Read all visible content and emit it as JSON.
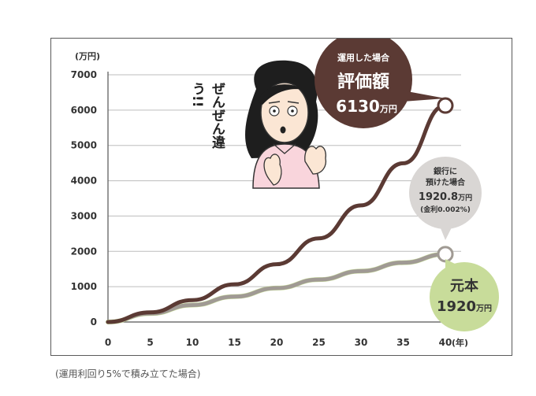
{
  "chart_data": {
    "type": "line",
    "yunit": "(万円)",
    "xunit": "(年)",
    "x_ticks": [
      0,
      5,
      10,
      15,
      20,
      25,
      30,
      35,
      40
    ],
    "y_ticks": [
      0,
      1000,
      2000,
      3000,
      4000,
      5000,
      6000,
      7000
    ],
    "xlim": [
      0,
      40
    ],
    "ylim": [
      0,
      7000
    ],
    "grid": true,
    "x": [
      0,
      5,
      10,
      15,
      20,
      25,
      30,
      35,
      40
    ],
    "series": [
      {
        "key": "invest",
        "color": "#5b3a34",
        "values": [
          0,
          272,
          620,
          1066,
          1637,
          2368,
          3302,
          4495,
          6130
        ]
      },
      {
        "key": "bank",
        "color": "#a09a94",
        "values": [
          0,
          240,
          480,
          720,
          960,
          1200,
          1440,
          1680,
          1920.8
        ]
      },
      {
        "key": "principal",
        "color": "#c8dc9a",
        "values": [
          0,
          240,
          480,
          720,
          960,
          1200,
          1440,
          1680,
          1920
        ]
      }
    ],
    "annotations": {
      "invest": {
        "line1": "運用した場合",
        "line2": "評価額",
        "value": "6130",
        "unit": "万円"
      },
      "bank": {
        "line1": "銀行に",
        "line2": "預けた場合",
        "value": "1920.8",
        "unit": "万円",
        "note": "(金利0.002%)"
      },
      "principal": {
        "line1": "元本",
        "value": "1920",
        "unit": "万円"
      }
    }
  },
  "illustration": {
    "exclaim": "ぜんぜん違う!!"
  },
  "caption": "(運用利回り5%で積み立てた場合)"
}
